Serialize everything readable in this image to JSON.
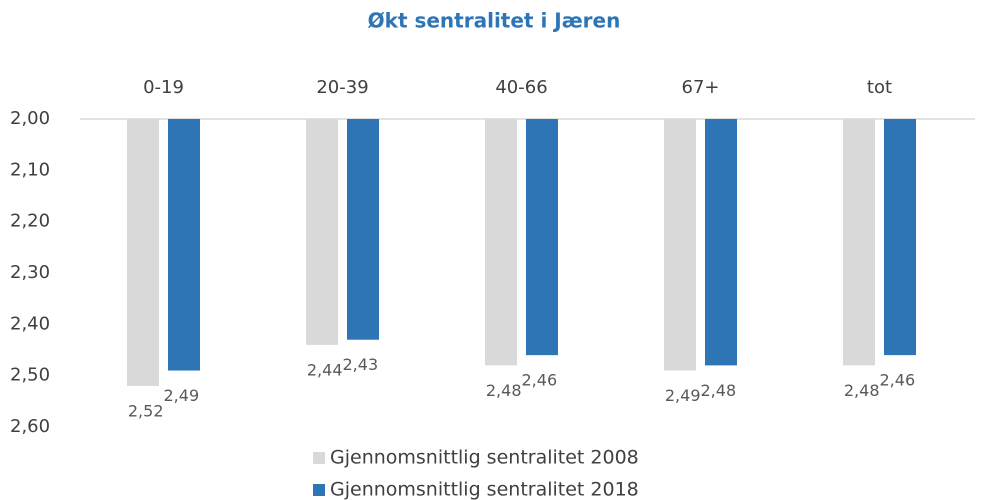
{
  "chart_data": {
    "type": "bar",
    "title": "Økt sentralitet i Jæren",
    "categories": [
      "0-19",
      "20-39",
      "40-66",
      "67+",
      "tot"
    ],
    "series": [
      {
        "name": "Gjennomsnittlig sentralitet 2008",
        "color": "#d9d9d9",
        "values": [
          2.52,
          2.44,
          2.48,
          2.49,
          2.48
        ],
        "value_labels": [
          "2,52",
          "2,44",
          "2,48",
          "2,49",
          "2,48"
        ]
      },
      {
        "name": "Gjennomsnittlig sentralitet 2018",
        "color": "#2e75b6",
        "values": [
          2.49,
          2.43,
          2.46,
          2.48,
          2.46
        ],
        "value_labels": [
          "2,49",
          "2,43",
          "2,46",
          "2,48",
          "2,46"
        ]
      }
    ],
    "ylim": [
      2.0,
      2.6
    ],
    "y_reversed": true,
    "yticks": [
      {
        "value": 2.0,
        "label": "2,00"
      },
      {
        "value": 2.1,
        "label": "2,10"
      },
      {
        "value": 2.2,
        "label": "2,20"
      },
      {
        "value": 2.3,
        "label": "2,30"
      },
      {
        "value": 2.4,
        "label": "2,40"
      },
      {
        "value": 2.5,
        "label": "2,50"
      },
      {
        "value": 2.6,
        "label": "2,60"
      }
    ],
    "grid": false,
    "legend": "bottom"
  }
}
